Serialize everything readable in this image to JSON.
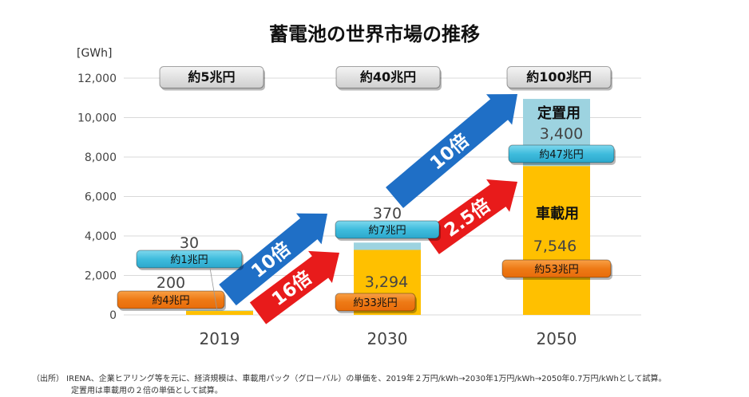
{
  "chart_data": {
    "type": "bar",
    "title": "蓄電池の世界市場の推移",
    "unit_label": "[GWh]",
    "categories": [
      "2019",
      "2030",
      "2050"
    ],
    "ylim": [
      0,
      12000
    ],
    "yticks": [
      "0",
      "2,000",
      "4,000",
      "6,000",
      "8,000",
      "10,000",
      "12,000"
    ],
    "grid": true,
    "series": [
      {
        "name": "車載用",
        "color": "#FFC000",
        "values": [
          200,
          3294,
          7546
        ],
        "value_labels": [
          "200",
          "3,294",
          "7,546"
        ],
        "market_labels": [
          "約4兆円",
          "約33兆円",
          "約53兆円"
        ]
      },
      {
        "name": "定置用",
        "color": "#9DD3E0",
        "values": [
          30,
          370,
          3400
        ],
        "value_labels": [
          "30",
          "370",
          "3,400"
        ],
        "market_labels": [
          "約1兆円",
          "約7兆円",
          "約47兆円"
        ]
      }
    ],
    "total_market_labels": [
      "約5兆円",
      "約40兆円",
      "約100兆円"
    ],
    "growth_arrows": [
      {
        "label": "10倍",
        "color": "#1F6FC6"
      },
      {
        "label": "16倍",
        "color": "#E81B1B"
      },
      {
        "label": "10倍",
        "color": "#1F6FC6"
      },
      {
        "label": "2.5倍",
        "color": "#E81B1B"
      }
    ]
  },
  "footnote": {
    "line1": "（出所） IRENA、企業ヒアリング等を元に、経済規模は、車載用パック（グローバル）の単価を、2019年２万円/kWh→2030年1万円/kWh→2050年0.7万円/kWhとして試算。",
    "line2": "定置用は車載用の２倍の単価として試算。"
  }
}
